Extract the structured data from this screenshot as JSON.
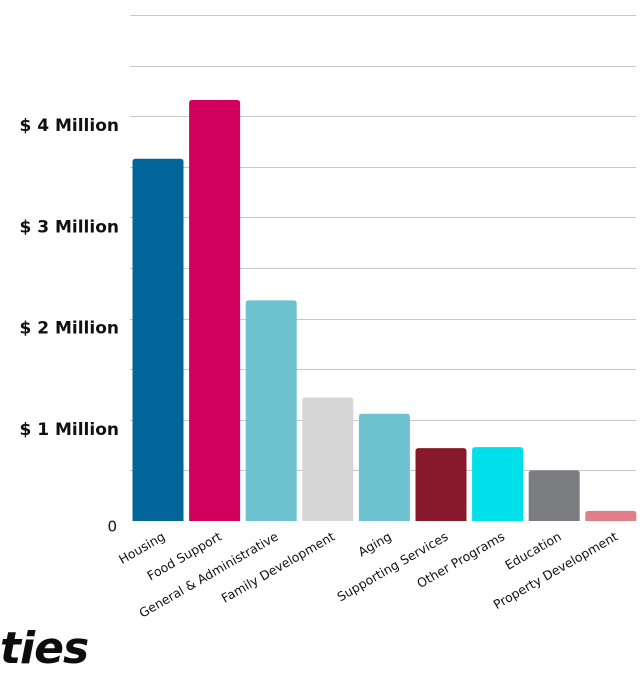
{
  "chart_data": {
    "type": "bar",
    "categories": [
      "Housing",
      "Food Support",
      "General & Administrative",
      "Family Development",
      "Aging",
      "Supporting Services",
      "Other Programs",
      "Education",
      "Property Development"
    ],
    "values": [
      3.58,
      4.16,
      2.18,
      1.22,
      1.06,
      0.72,
      0.73,
      0.5,
      0.1
    ],
    "colors": [
      "#02659a",
      "#d1005e",
      "#6cc3cf",
      "#d6d6d6",
      "#6cc3cf",
      "#88182b",
      "#00e0ea",
      "#7a7c80",
      "#e07f88"
    ],
    "y_ticks": [
      {
        "value": 0,
        "label": "0"
      },
      {
        "value": 1,
        "label": "$ 1 Million"
      },
      {
        "value": 2,
        "label": "$ 2 Million"
      },
      {
        "value": 3,
        "label": "$ 3 Million"
      },
      {
        "value": 4,
        "label": "$ 4 Million"
      }
    ],
    "ylim": [
      0,
      5
    ],
    "grid": true,
    "legend": "none"
  },
  "footer": {
    "partial_text": "ties"
  }
}
